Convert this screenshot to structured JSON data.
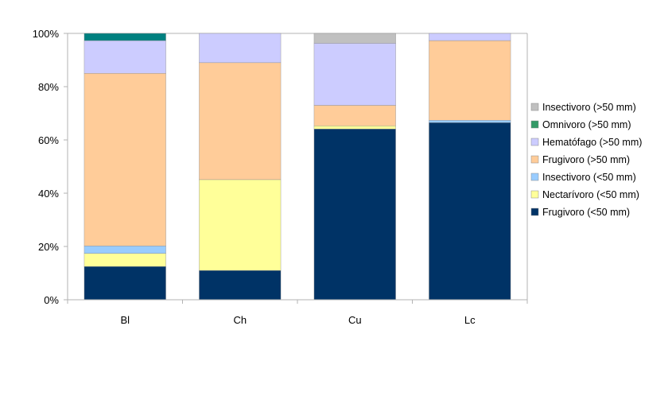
{
  "chart_data": {
    "type": "bar",
    "stacked": true,
    "percent": true,
    "title": "",
    "xlabel": "",
    "ylabel": "",
    "ylim": [
      0,
      100
    ],
    "yticks": [
      "0%",
      "20%",
      "40%",
      "60%",
      "80%",
      "100%"
    ],
    "categories": [
      "Bl",
      "Ch",
      "Cu",
      "Lc"
    ],
    "legend_position": "right",
    "series": [
      {
        "name": "Frugivoro (<50 mm)",
        "color": "#003366",
        "values": [
          12.5,
          11.0,
          64.1,
          66.5
        ]
      },
      {
        "name": "Nectarívoro (<50 mm)",
        "color": "#FFFF99",
        "values": [
          4.9,
          34.1,
          1.2,
          0
        ]
      },
      {
        "name": "Insectivoro (<50 mm)",
        "color": "#99CCFF",
        "values": [
          2.8,
          0,
          0,
          0.9
        ]
      },
      {
        "name": "Frugivoro (>50 mm)",
        "color": "#FFCC99",
        "values": [
          64.8,
          43.9,
          7.7,
          29.9
        ]
      },
      {
        "name": "Hematófago (>50 mm)",
        "color": "#CCCCFF",
        "values": [
          12.3,
          11.0,
          23.3,
          2.7
        ]
      },
      {
        "name": "Omnivoro (>50 mm)",
        "color": "#008080",
        "legend_color": "#339966",
        "values": [
          2.7,
          0,
          0,
          0
        ]
      },
      {
        "name": "Insectivoro (>50 mm)",
        "color": "#C0C0C0",
        "values": [
          0,
          0,
          3.7,
          0
        ]
      }
    ]
  }
}
